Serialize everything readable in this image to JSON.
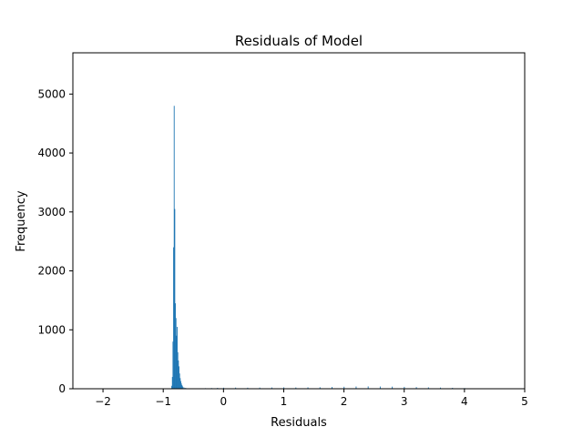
{
  "chart_data": {
    "type": "histogram",
    "title": "Residuals of Model",
    "xlabel": "Residuals",
    "ylabel": "Frequency",
    "xlim": [
      -2.5,
      5.0
    ],
    "ylim": [
      0,
      5700
    ],
    "xticks": [
      -2,
      -1,
      0,
      1,
      2,
      3,
      4,
      5
    ],
    "yticks": [
      0,
      1000,
      2000,
      3000,
      4000,
      5000
    ],
    "grid": false,
    "legend": "none",
    "bar_color": "#1f77b4",
    "bins": [
      {
        "x": -0.86,
        "count": 50
      },
      {
        "x": -0.85,
        "count": 200
      },
      {
        "x": -0.84,
        "count": 800
      },
      {
        "x": -0.83,
        "count": 2400
      },
      {
        "x": -0.82,
        "count": 4800
      },
      {
        "x": -0.81,
        "count": 3050
      },
      {
        "x": -0.8,
        "count": 1450
      },
      {
        "x": -0.79,
        "count": 1200
      },
      {
        "x": -0.78,
        "count": 900
      },
      {
        "x": -0.77,
        "count": 1050
      },
      {
        "x": -0.76,
        "count": 620
      },
      {
        "x": -0.75,
        "count": 480
      },
      {
        "x": -0.74,
        "count": 380
      },
      {
        "x": -0.73,
        "count": 260
      },
      {
        "x": -0.72,
        "count": 180
      },
      {
        "x": -0.71,
        "count": 130
      },
      {
        "x": -0.7,
        "count": 90
      },
      {
        "x": -0.69,
        "count": 60
      },
      {
        "x": -0.68,
        "count": 40
      },
      {
        "x": -0.66,
        "count": 25
      },
      {
        "x": -0.64,
        "count": 15
      },
      {
        "x": -0.62,
        "count": 10
      },
      {
        "x": -0.58,
        "count": 8
      },
      {
        "x": -0.5,
        "count": 6
      },
      {
        "x": -0.4,
        "count": 8
      },
      {
        "x": -0.3,
        "count": 10
      },
      {
        "x": -0.2,
        "count": 12
      },
      {
        "x": -0.1,
        "count": 15
      },
      {
        "x": 0.0,
        "count": 18
      },
      {
        "x": 0.2,
        "count": 20
      },
      {
        "x": 0.4,
        "count": 18
      },
      {
        "x": 0.6,
        "count": 20
      },
      {
        "x": 0.8,
        "count": 22
      },
      {
        "x": 1.0,
        "count": 24
      },
      {
        "x": 1.2,
        "count": 22
      },
      {
        "x": 1.4,
        "count": 24
      },
      {
        "x": 1.6,
        "count": 26
      },
      {
        "x": 1.8,
        "count": 30
      },
      {
        "x": 2.0,
        "count": 34
      },
      {
        "x": 2.2,
        "count": 38
      },
      {
        "x": 2.4,
        "count": 40
      },
      {
        "x": 2.6,
        "count": 38
      },
      {
        "x": 2.8,
        "count": 36
      },
      {
        "x": 3.0,
        "count": 32
      },
      {
        "x": 3.2,
        "count": 28
      },
      {
        "x": 3.4,
        "count": 24
      },
      {
        "x": 3.6,
        "count": 20
      },
      {
        "x": 3.8,
        "count": 16
      },
      {
        "x": 4.0,
        "count": 12
      },
      {
        "x": 4.1,
        "count": 6
      }
    ]
  }
}
